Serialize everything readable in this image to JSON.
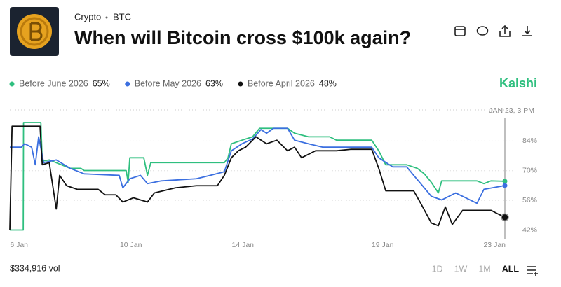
{
  "header": {
    "category": "Crypto",
    "ticker": "BTC"
  },
  "brand": "Kalshi",
  "volume": "$334,916 vol",
  "ranges": [
    "1D",
    "1W",
    "1M",
    "ALL"
  ],
  "chart_data": {
    "type": "line",
    "title": "When will Bitcoin cross $100k again?",
    "cursor_label": "JAN 23, 3 PM",
    "xlim": [
      5.67,
      23.37
    ],
    "xticks": [
      {
        "value": 6,
        "label": "6 Jan"
      },
      {
        "value": 10,
        "label": "10 Jan"
      },
      {
        "value": 14,
        "label": "14 Jan"
      },
      {
        "value": 19,
        "label": "19 Jan"
      },
      {
        "value": 23,
        "label": "23 Jan"
      }
    ],
    "ylim": [
      41.5,
      100
    ],
    "yticks": [
      {
        "value": 42,
        "label": "42%"
      },
      {
        "value": 56,
        "label": "56%"
      },
      {
        "value": 70,
        "label": "70%"
      },
      {
        "value": 84,
        "label": "84%"
      }
    ],
    "grid": true,
    "series": [
      {
        "name": "Before June 2026",
        "color": "#2fbf7f",
        "current": {
          "value": 65,
          "label": "65%"
        },
        "x": [
          5.67,
          6.15,
          6.16,
          6.78,
          6.83,
          7.08,
          7.83,
          8.21,
          8.33,
          9.83,
          9.9,
          9.96,
          10.46,
          10.59,
          10.71,
          11.34,
          13.34,
          13.47,
          13.59,
          13.97,
          14.35,
          14.6,
          15.6,
          15.85,
          16.35,
          17.1,
          17.35,
          18.61,
          18.86,
          19.11,
          19.86,
          20.24,
          20.49,
          20.74,
          20.99,
          21.11,
          22.37,
          22.62,
          22.87,
          23.37
        ],
        "values": [
          42,
          42,
          92.7,
          92.7,
          74.5,
          75.1,
          71.1,
          71.1,
          70.1,
          70.1,
          64.5,
          76.1,
          76.1,
          67.8,
          73.8,
          73.8,
          73.8,
          76.1,
          82.7,
          84.4,
          86,
          90,
          90,
          87.7,
          86,
          86,
          84.4,
          84.4,
          79.4,
          72.8,
          72.8,
          71.1,
          68.5,
          64.5,
          59.5,
          65.2,
          65.2,
          63.9,
          65.2,
          65
        ]
      },
      {
        "name": "Before May 2026",
        "color": "#3b6fe0",
        "current": {
          "value": 63,
          "label": "63%"
        },
        "x": [
          5.67,
          6.08,
          6.2,
          6.45,
          6.58,
          6.7,
          6.88,
          7.33,
          7.83,
          8.33,
          9.58,
          9.71,
          9.96,
          10.34,
          10.59,
          11.09,
          12.34,
          12.84,
          13.34,
          13.59,
          13.97,
          14.35,
          14.65,
          14.85,
          15.1,
          15.6,
          15.85,
          16.35,
          16.85,
          18.61,
          18.86,
          19.36,
          19.86,
          20.11,
          20.36,
          20.74,
          21.11,
          21.61,
          22.37,
          22.62,
          23.37
        ],
        "values": [
          81.1,
          81.1,
          82.7,
          81.1,
          72.8,
          86,
          73.8,
          75.1,
          71.1,
          68.5,
          67.8,
          61.9,
          66.2,
          67.8,
          63.9,
          65.2,
          66.2,
          67.8,
          69.5,
          79.4,
          82.7,
          85,
          89.4,
          87.7,
          90,
          90,
          84.4,
          82.7,
          81.1,
          81.1,
          76.1,
          71.8,
          71.8,
          67.8,
          63.9,
          57.9,
          56.2,
          59.5,
          54.6,
          61.2,
          63
        ]
      },
      {
        "name": "Before April 2026",
        "color": "#111111",
        "current": {
          "value": 48,
          "label": "48%"
        },
        "x": [
          5.67,
          5.75,
          6.75,
          6.83,
          7.08,
          7.33,
          7.45,
          7.7,
          8.08,
          8.83,
          9.08,
          9.46,
          9.71,
          10.09,
          10.59,
          10.84,
          11.59,
          12.34,
          13.09,
          13.34,
          13.59,
          13.84,
          14.1,
          14.47,
          14.85,
          15.22,
          15.6,
          15.85,
          16.1,
          16.6,
          17.35,
          17.85,
          18.61,
          18.86,
          19.11,
          20.11,
          20.36,
          20.74,
          20.99,
          21.24,
          21.49,
          21.86,
          22.87,
          23.12,
          23.37
        ],
        "values": [
          42,
          91,
          91,
          72.8,
          73.8,
          51.9,
          67.8,
          62.9,
          61.2,
          61.2,
          58.6,
          58.6,
          55.2,
          57.2,
          55.2,
          59.5,
          61.9,
          62.9,
          62.9,
          67.8,
          76.1,
          79.4,
          81.1,
          86,
          82.7,
          84.4,
          79.4,
          81.1,
          76.1,
          79.4,
          79.4,
          80.1,
          80.1,
          71.1,
          60.5,
          60.5,
          54.6,
          45.3,
          44,
          52.9,
          44.6,
          51.3,
          51.3,
          49.6,
          48
        ]
      }
    ]
  }
}
